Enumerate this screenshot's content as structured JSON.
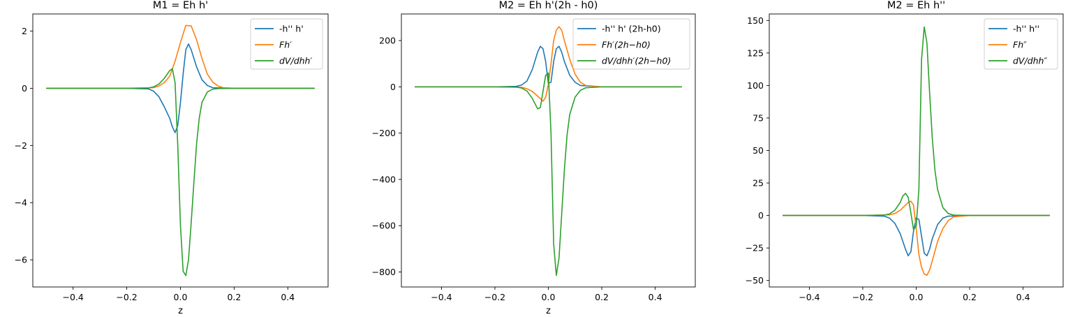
{
  "chart_data": [
    {
      "type": "line",
      "title": "M1 = Eh h'",
      "xlabel": "z",
      "ylabel": "",
      "xlim": [
        -0.55,
        0.55
      ],
      "ylim": [
        -6.95,
        2.6
      ],
      "xticks": [
        -0.4,
        -0.2,
        0.0,
        0.2,
        0.4
      ],
      "xtick_labels": [
        "−0.4",
        "−0.2",
        "0.0",
        "0.2",
        "0.4"
      ],
      "yticks": [
        2,
        0,
        -2,
        -4,
        -6
      ],
      "ytick_labels": [
        "2",
        "0",
        "−2",
        "−4",
        "−6"
      ],
      "legend_placement": "top-right",
      "series": [
        {
          "name": "-h'' h'",
          "color": "#1f77b4",
          "x": [
            -0.5,
            -0.2,
            -0.12,
            -0.1,
            -0.08,
            -0.06,
            -0.04,
            -0.03,
            -0.02,
            -0.01,
            0.0,
            0.01,
            0.02,
            0.03,
            0.04,
            0.06,
            0.08,
            0.1,
            0.12,
            0.2,
            0.5
          ],
          "y": [
            0,
            0,
            -0.02,
            -0.1,
            -0.3,
            -0.65,
            -1.05,
            -1.35,
            -1.55,
            -1.3,
            -0.5,
            0.5,
            1.35,
            1.55,
            1.35,
            0.75,
            0.3,
            0.1,
            0.02,
            0,
            0
          ]
        },
        {
          "name": "Fh′",
          "color": "#ff7f0e",
          "x": [
            -0.5,
            -0.2,
            -0.1,
            -0.08,
            -0.06,
            -0.04,
            -0.02,
            0.0,
            0.02,
            0.04,
            0.06,
            0.08,
            0.1,
            0.12,
            0.14,
            0.16,
            0.2,
            0.5
          ],
          "y": [
            0,
            0,
            0.02,
            0.08,
            0.2,
            0.42,
            0.95,
            1.6,
            2.2,
            2.18,
            1.7,
            1.05,
            0.5,
            0.22,
            0.08,
            0.02,
            0,
            0
          ]
        },
        {
          "name": "dV/dhh′",
          "color": "#2ca02c",
          "x": [
            -0.5,
            -0.2,
            -0.12,
            -0.1,
            -0.08,
            -0.06,
            -0.04,
            -0.03,
            -0.02,
            -0.01,
            0.0,
            0.01,
            0.02,
            0.03,
            0.04,
            0.05,
            0.06,
            0.07,
            0.08,
            0.1,
            0.12,
            0.14,
            0.2,
            0.5
          ],
          "y": [
            0,
            0,
            0.01,
            0.05,
            0.15,
            0.35,
            0.62,
            0.68,
            0.2,
            -2.0,
            -4.8,
            -6.4,
            -6.55,
            -6.0,
            -4.7,
            -3.3,
            -1.95,
            -1.05,
            -0.5,
            -0.13,
            -0.03,
            -0.01,
            0,
            0
          ]
        }
      ]
    },
    {
      "type": "line",
      "title": "M2 = Eh h'(2h - h0)",
      "xlabel": "z",
      "ylabel": "",
      "xlim": [
        -0.55,
        0.55
      ],
      "ylim": [
        -865,
        315
      ],
      "xticks": [
        -0.4,
        -0.2,
        0.0,
        0.2,
        0.4
      ],
      "xtick_labels": [
        "−0.4",
        "−0.2",
        "0.0",
        "0.2",
        "0.4"
      ],
      "yticks": [
        200,
        0,
        -200,
        -400,
        -600,
        -800
      ],
      "ytick_labels": [
        "200",
        "0",
        "−200",
        "−400",
        "−600",
        "−800"
      ],
      "legend_placement": "top-right",
      "series": [
        {
          "name": "-h'' h' (2h-h0)",
          "color": "#1f77b4",
          "x": [
            -0.5,
            -0.2,
            -0.12,
            -0.1,
            -0.08,
            -0.06,
            -0.04,
            -0.03,
            -0.02,
            -0.01,
            0.0,
            0.01,
            0.02,
            0.03,
            0.04,
            0.05,
            0.06,
            0.08,
            0.1,
            0.12,
            0.2,
            0.5
          ],
          "y": [
            0,
            0,
            2,
            8,
            25,
            75,
            150,
            175,
            165,
            110,
            15,
            20,
            110,
            165,
            175,
            150,
            110,
            50,
            20,
            6,
            0,
            0
          ]
        },
        {
          "name": "Fh′(2h−h0)",
          "color": "#ff7f0e",
          "x": [
            -0.5,
            -0.2,
            -0.1,
            -0.08,
            -0.06,
            -0.04,
            -0.02,
            -0.01,
            0.0,
            0.01,
            0.02,
            0.03,
            0.04,
            0.05,
            0.06,
            0.08,
            0.1,
            0.12,
            0.14,
            0.2,
            0.5
          ],
          "y": [
            0,
            0,
            -2,
            -8,
            -20,
            -40,
            -62,
            -45,
            10,
            100,
            200,
            245,
            260,
            245,
            200,
            120,
            55,
            20,
            6,
            0,
            0
          ]
        },
        {
          "name": "dV/dhh′(2h−h0)",
          "color": "#2ca02c",
          "x": [
            -0.5,
            -0.2,
            -0.12,
            -0.1,
            -0.08,
            -0.06,
            -0.04,
            -0.03,
            -0.02,
            -0.01,
            0.0,
            0.01,
            0.02,
            0.03,
            0.04,
            0.05,
            0.06,
            0.07,
            0.08,
            0.1,
            0.12,
            0.14,
            0.2,
            0.5
          ],
          "y": [
            0,
            0,
            -1,
            -5,
            -18,
            -50,
            -95,
            -90,
            -20,
            50,
            60,
            -200,
            -680,
            -815,
            -740,
            -550,
            -360,
            -210,
            -120,
            -45,
            -15,
            -4,
            0,
            0
          ]
        }
      ]
    },
    {
      "type": "line",
      "title": "M2 = Eh h''",
      "xlabel": "",
      "ylabel": "",
      "xlim": [
        -0.55,
        0.55
      ],
      "ylim": [
        -55,
        155
      ],
      "xticks": [
        -0.4,
        -0.2,
        0.0,
        0.2,
        0.4
      ],
      "xtick_labels": [
        "−0.4",
        "−0.2",
        "0.0",
        "0.2",
        "0.4"
      ],
      "yticks": [
        150,
        125,
        100,
        75,
        50,
        25,
        0,
        -25,
        -50
      ],
      "ytick_labels": [
        "150",
        "125",
        "100",
        "75",
        "50",
        "25",
        "0",
        "−25",
        "−50"
      ],
      "legend_placement": "top-right",
      "series": [
        {
          "name": "-h'' h''",
          "color": "#1f77b4",
          "x": [
            -0.5,
            -0.2,
            -0.12,
            -0.1,
            -0.08,
            -0.06,
            -0.04,
            -0.03,
            -0.02,
            -0.01,
            0.0,
            0.01,
            0.02,
            0.03,
            0.04,
            0.05,
            0.06,
            0.08,
            0.1,
            0.12,
            0.2,
            0.5
          ],
          "y": [
            0,
            0,
            -0.5,
            -2,
            -6,
            -14,
            -26,
            -31,
            -28,
            -12,
            -2,
            -3,
            -16,
            -29,
            -31,
            -26,
            -18,
            -7,
            -2,
            -0.5,
            0,
            0
          ]
        },
        {
          "name": "Fh″",
          "color": "#ff7f0e",
          "x": [
            -0.5,
            -0.2,
            -0.1,
            -0.08,
            -0.06,
            -0.04,
            -0.03,
            -0.02,
            -0.01,
            0.0,
            0.01,
            0.02,
            0.03,
            0.04,
            0.05,
            0.06,
            0.08,
            0.1,
            0.12,
            0.14,
            0.2,
            0.5
          ],
          "y": [
            0,
            0,
            0.5,
            1.5,
            4,
            8,
            10,
            11,
            8,
            -10,
            -30,
            -40,
            -45,
            -46,
            -42,
            -35,
            -20,
            -10,
            -4,
            -1,
            0,
            0
          ]
        },
        {
          "name": "dV/dhh″",
          "color": "#2ca02c",
          "x": [
            -0.5,
            -0.2,
            -0.12,
            -0.1,
            -0.08,
            -0.06,
            -0.05,
            -0.04,
            -0.03,
            -0.02,
            -0.01,
            0.0,
            0.01,
            0.02,
            0.03,
            0.04,
            0.05,
            0.06,
            0.07,
            0.08,
            0.1,
            0.12,
            0.14,
            0.2,
            0.5
          ],
          "y": [
            0,
            0,
            0.3,
            1.2,
            4,
            10,
            15,
            17,
            14,
            2,
            -11,
            -8,
            20,
            120,
            145,
            133,
            95,
            60,
            35,
            20,
            6,
            1.5,
            0.3,
            0,
            0
          ]
        }
      ]
    }
  ]
}
